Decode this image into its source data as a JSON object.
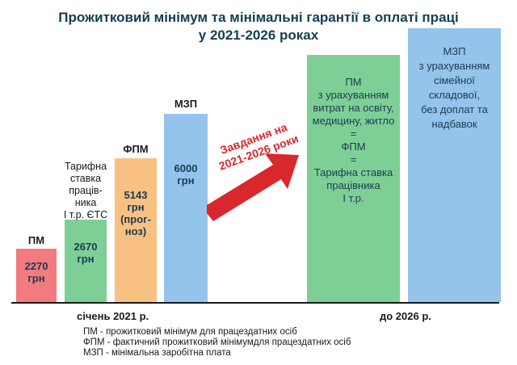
{
  "title": {
    "line1": "Прожитковий мінімум та мінімальні гарантії в оплаті праці",
    "line2": "у 2021-2026 роках"
  },
  "colors": {
    "title": "#123f52",
    "pm_bar": "#f27b80",
    "tariff_bar": "#7ecf96",
    "fpm_bar": "#f8c182",
    "mzp_bar": "#94c3eb",
    "arrow": "#d9272e"
  },
  "arrow": {
    "text": "Завдання на\n2021-2026 роки"
  },
  "x_axis": {
    "left_label": "січень 2021 р.",
    "right_label": "до 2026 р."
  },
  "legend": {
    "pm": "ПМ - прожитковий мінімум для працездатних осіб",
    "fpm": "ФПМ - фактичний прожитковий мінімумдля працездатних осіб",
    "mzp": "МЗП - мінімальна заробітна плата"
  },
  "chart_data": {
    "type": "bar",
    "title": "Прожитковий мінімум та мінімальні гарантії в оплаті праці у 2021-2026 роках",
    "unit": "грн",
    "categories": [
      "січень 2021 р.",
      "до 2026 р."
    ],
    "bars": [
      {
        "id": "pm",
        "period": "січень 2021 р.",
        "label": "ПМ",
        "value": 2270,
        "value_text": "2270\nгрн"
      },
      {
        "id": "tariff",
        "period": "січень 2021 р.",
        "label": "Тарифна\nставка\nпрацiв-\nника\nI т.р. ЄТС",
        "value": 2670,
        "value_text": "2670\nгрн"
      },
      {
        "id": "fpm",
        "period": "січень 2021 р.",
        "label": "ФПМ",
        "value": 5143,
        "value_text": "5143\nгрн\n(прог-\nноз)"
      },
      {
        "id": "mzp",
        "period": "січень 2021 р.",
        "label": "МЗП",
        "value": 6000,
        "value_text": "6000\nгрн"
      },
      {
        "id": "pm_2026",
        "period": "до 2026 р.",
        "label": "",
        "value": null,
        "value_text": "ПМ\nз урахуванням\nвитрат на освіту,\nмедицину, житло\n=\nФПМ\n=\nТарифна ставка\nпрацівника\nI т.р."
      },
      {
        "id": "mzp_2026",
        "period": "до 2026 р.",
        "label": "",
        "value": null,
        "value_text": "МЗП\nз урахуванням\nсімейної\nскладової,\nбез  доплат та\nнадбавок"
      }
    ]
  }
}
